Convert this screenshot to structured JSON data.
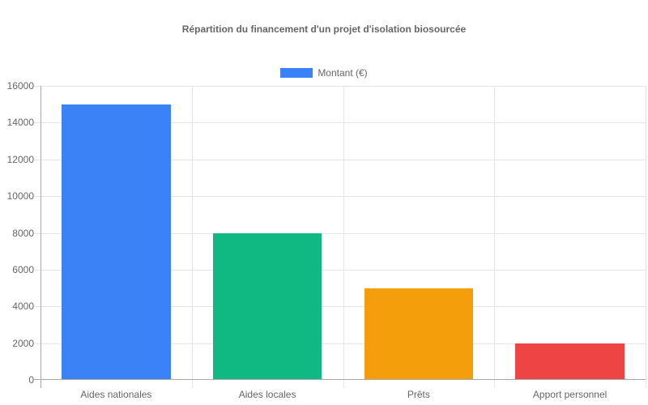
{
  "chart_data": {
    "type": "bar",
    "title": "Répartition du financement d'un projet d'isolation biosourcée",
    "xlabel": "",
    "ylabel": "",
    "categories": [
      "Aides nationales",
      "Aides locales",
      "Prêts",
      "Apport personnel"
    ],
    "series": [
      {
        "name": "Montant (€)",
        "values": [
          15000,
          8000,
          5000,
          2000
        ],
        "colors": [
          "#3b82f6",
          "#10b981",
          "#f59e0b",
          "#ef4444"
        ]
      }
    ],
    "ylim": [
      0,
      16000
    ],
    "yticks": [
      "0",
      "2000",
      "4000",
      "6000",
      "8000",
      "10000",
      "12000",
      "14000",
      "16000"
    ],
    "grid": true,
    "legend_position": "top"
  },
  "legend": {
    "label": "Montant (€)",
    "color": "#3b82f6"
  }
}
